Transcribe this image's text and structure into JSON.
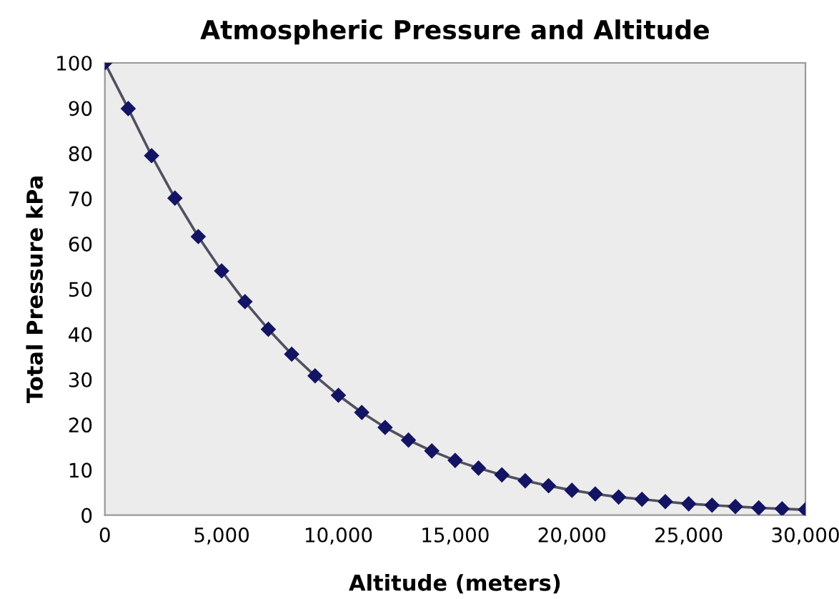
{
  "chart_data": {
    "type": "line",
    "title": "Atmospheric Pressure and Altitude",
    "xlabel": "Altitude (meters)",
    "ylabel": "Total Pressure kPa",
    "x": [
      0,
      1000,
      2000,
      3000,
      4000,
      5000,
      6000,
      7000,
      8000,
      9000,
      10000,
      11000,
      12000,
      13000,
      14000,
      15000,
      16000,
      17000,
      18000,
      19000,
      20000,
      21000,
      22000,
      23000,
      24000,
      25000,
      26000,
      27000,
      28000,
      29000,
      30000
    ],
    "series": [
      {
        "color": "#141464",
        "values": [
          100,
          89.9,
          79.5,
          70.1,
          61.6,
          54.0,
          47.2,
          41.1,
          35.6,
          30.8,
          26.5,
          22.7,
          19.4,
          16.6,
          14.2,
          12.1,
          10.4,
          8.9,
          7.6,
          6.5,
          5.5,
          4.7,
          4.0,
          3.5,
          3.0,
          2.5,
          2.2,
          1.9,
          1.6,
          1.4,
          1.2
        ]
      }
    ],
    "xlim": [
      0,
      30000
    ],
    "ylim": [
      0,
      100
    ],
    "xticks": [
      {
        "value": 0,
        "label": "0"
      },
      {
        "value": 5000,
        "label": "5,000"
      },
      {
        "value": 10000,
        "label": "10,000"
      },
      {
        "value": 15000,
        "label": "15,000"
      },
      {
        "value": 20000,
        "label": "20,000"
      },
      {
        "value": 25000,
        "label": "25,000"
      },
      {
        "value": 30000,
        "label": "30,000"
      }
    ],
    "yticks": [
      0,
      10,
      20,
      30,
      40,
      50,
      60,
      70,
      80,
      90,
      100
    ],
    "marker": "diamond",
    "line_style": "solid",
    "grid": false,
    "legend": false
  }
}
